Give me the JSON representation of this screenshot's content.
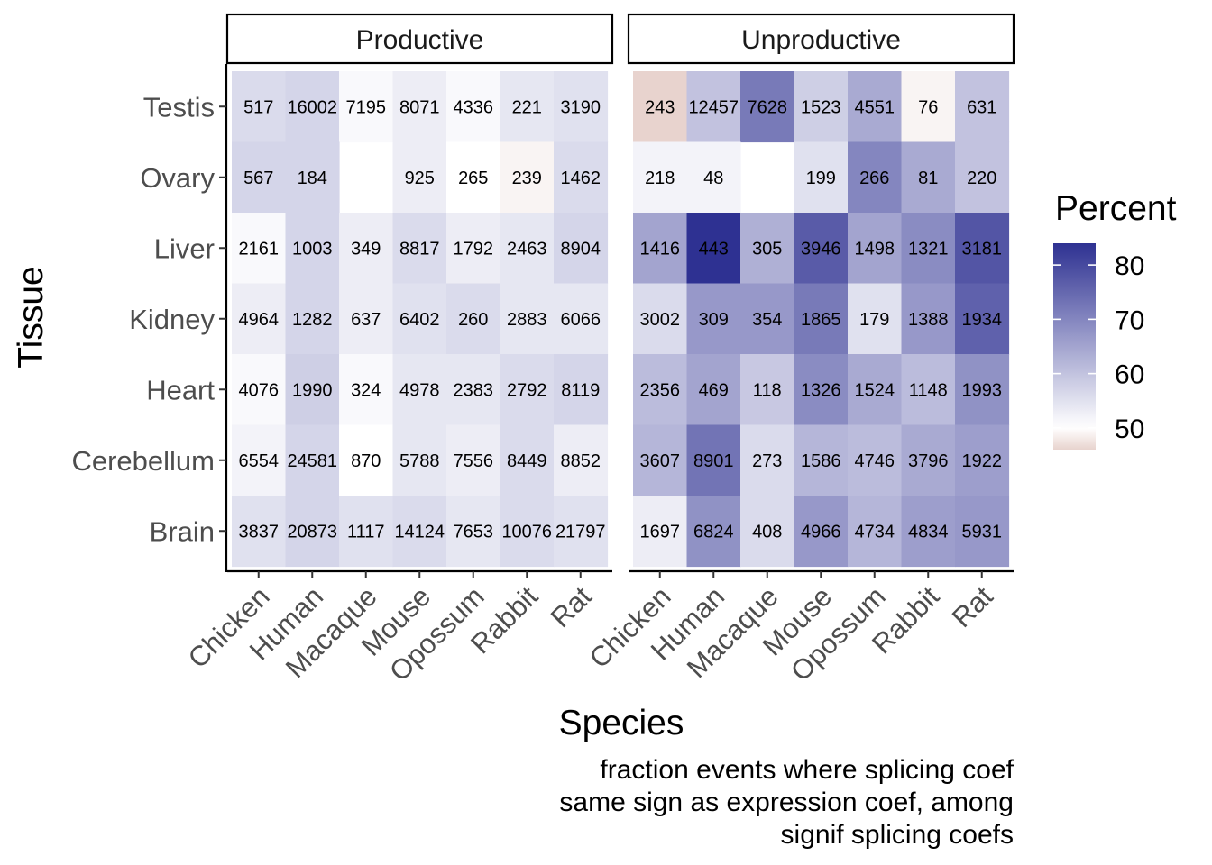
{
  "chart_data": {
    "type": "heatmap",
    "facets": [
      "Productive",
      "Unproductive"
    ],
    "species": [
      "Chicken",
      "Human",
      "Macaque",
      "Mouse",
      "Opossum",
      "Rabbit",
      "Rat"
    ],
    "tissues": [
      "Testis",
      "Ovary",
      "Liver",
      "Kidney",
      "Heart",
      "Cerebellum",
      "Brain"
    ],
    "xlabel": "Species",
    "ylabel": "Tissue",
    "caption_lines": [
      "fraction events where splicing coef",
      "same sign as expression coef, among",
      "signif splicing coefs"
    ],
    "legend": {
      "title": "Percent",
      "breaks": [
        "80",
        "70",
        "60",
        "50"
      ],
      "break_values": [
        80,
        70,
        60,
        50
      ],
      "range": [
        46,
        84
      ],
      "low_color": "#E8D3CE",
      "mid_color": "#FFFFFF",
      "mid_value": 50,
      "high_color": "#2E3192"
    },
    "panels": [
      {
        "name": "Productive",
        "labels": [
          [
            "517",
            "16002",
            "7195",
            "8071",
            "4336",
            "221",
            "3190"
          ],
          [
            "567",
            "184",
            null,
            "925",
            "265",
            "239",
            "1462"
          ],
          [
            "2161",
            "1003",
            "349",
            "8817",
            "1792",
            "2463",
            "8904"
          ],
          [
            "4964",
            "1282",
            "637",
            "6402",
            "260",
            "2883",
            "6066"
          ],
          [
            "4076",
            "1990",
            "324",
            "4978",
            "2383",
            "2792",
            "8119"
          ],
          [
            "6554",
            "24581",
            "870",
            "5788",
            "7556",
            "8449",
            "8852"
          ],
          [
            "3837",
            "20873",
            "1117",
            "14124",
            "7653",
            "10076",
            "21797"
          ]
        ],
        "percent": [
          [
            56,
            57,
            51,
            53,
            51,
            54,
            55
          ],
          [
            57,
            57,
            null,
            53,
            50,
            49,
            56
          ],
          [
            51,
            57,
            53,
            56,
            53,
            54,
            57
          ],
          [
            53,
            57,
            53,
            55,
            56,
            54,
            54
          ],
          [
            51,
            58,
            51,
            54,
            54,
            56,
            57
          ],
          [
            52,
            57,
            50,
            54,
            53,
            56,
            53
          ],
          [
            55,
            57,
            55,
            56,
            54,
            56,
            55
          ]
        ]
      },
      {
        "name": "Unproductive",
        "labels": [
          [
            "243",
            "12457",
            "7628",
            "1523",
            "4551",
            "76",
            "631"
          ],
          [
            "218",
            "48",
            null,
            "199",
            "266",
            "81",
            "220"
          ],
          [
            "1416",
            "443",
            "305",
            "3946",
            "1498",
            "1321",
            "3181"
          ],
          [
            "3002",
            "309",
            "354",
            "1865",
            "179",
            "1388",
            "1934"
          ],
          [
            "2356",
            "469",
            "118",
            "1326",
            "1524",
            "1148",
            "1993"
          ],
          [
            "3607",
            "8901",
            "273",
            "1586",
            "4746",
            "3796",
            "1922"
          ],
          [
            "1697",
            "6824",
            "408",
            "4966",
            "4734",
            "4834",
            "5931"
          ]
        ],
        "percent": [
          [
            46,
            60,
            72,
            58,
            64,
            49,
            60
          ],
          [
            52,
            52,
            null,
            55,
            70,
            64,
            60
          ],
          [
            65,
            84,
            63,
            77,
            65,
            69,
            78
          ],
          [
            56,
            67,
            67,
            72,
            55,
            67,
            76
          ],
          [
            61,
            65,
            59,
            69,
            64,
            61,
            68
          ],
          [
            62,
            73,
            56,
            62,
            61,
            64,
            66
          ],
          [
            53,
            68,
            56,
            67,
            62,
            66,
            67
          ]
        ]
      }
    ]
  }
}
